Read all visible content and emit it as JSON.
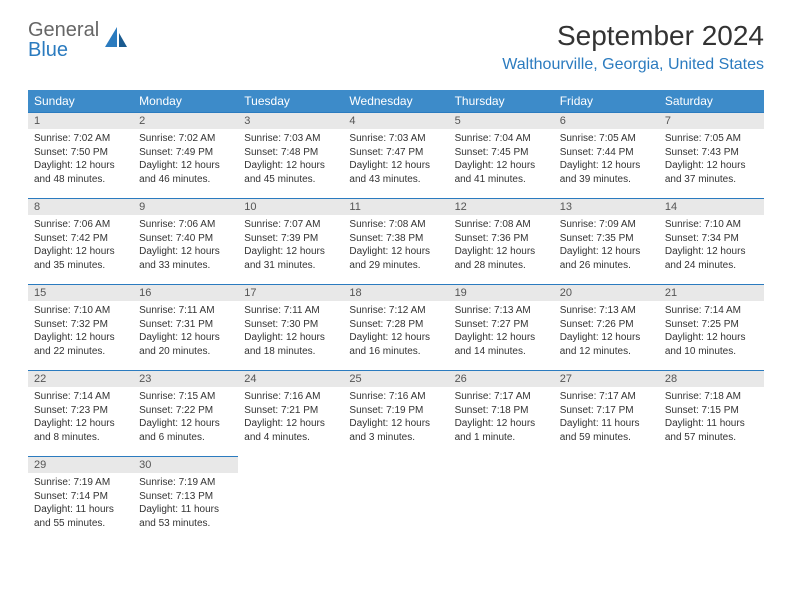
{
  "logo": {
    "text_main": "General",
    "text_accent": "Blue"
  },
  "title": {
    "month": "September 2024",
    "location": "Walthourville, Georgia, United States"
  },
  "colors": {
    "header_bg": "#3d8bc9",
    "accent": "#2b7bbf",
    "daynum_bg": "#e8e8e8",
    "text": "#333333"
  },
  "weekdays": [
    "Sunday",
    "Monday",
    "Tuesday",
    "Wednesday",
    "Thursday",
    "Friday",
    "Saturday"
  ],
  "days": [
    {
      "n": 1,
      "sunrise": "7:02 AM",
      "sunset": "7:50 PM",
      "daylight": "12 hours and 48 minutes."
    },
    {
      "n": 2,
      "sunrise": "7:02 AM",
      "sunset": "7:49 PM",
      "daylight": "12 hours and 46 minutes."
    },
    {
      "n": 3,
      "sunrise": "7:03 AM",
      "sunset": "7:48 PM",
      "daylight": "12 hours and 45 minutes."
    },
    {
      "n": 4,
      "sunrise": "7:03 AM",
      "sunset": "7:47 PM",
      "daylight": "12 hours and 43 minutes."
    },
    {
      "n": 5,
      "sunrise": "7:04 AM",
      "sunset": "7:45 PM",
      "daylight": "12 hours and 41 minutes."
    },
    {
      "n": 6,
      "sunrise": "7:05 AM",
      "sunset": "7:44 PM",
      "daylight": "12 hours and 39 minutes."
    },
    {
      "n": 7,
      "sunrise": "7:05 AM",
      "sunset": "7:43 PM",
      "daylight": "12 hours and 37 minutes."
    },
    {
      "n": 8,
      "sunrise": "7:06 AM",
      "sunset": "7:42 PM",
      "daylight": "12 hours and 35 minutes."
    },
    {
      "n": 9,
      "sunrise": "7:06 AM",
      "sunset": "7:40 PM",
      "daylight": "12 hours and 33 minutes."
    },
    {
      "n": 10,
      "sunrise": "7:07 AM",
      "sunset": "7:39 PM",
      "daylight": "12 hours and 31 minutes."
    },
    {
      "n": 11,
      "sunrise": "7:08 AM",
      "sunset": "7:38 PM",
      "daylight": "12 hours and 29 minutes."
    },
    {
      "n": 12,
      "sunrise": "7:08 AM",
      "sunset": "7:36 PM",
      "daylight": "12 hours and 28 minutes."
    },
    {
      "n": 13,
      "sunrise": "7:09 AM",
      "sunset": "7:35 PM",
      "daylight": "12 hours and 26 minutes."
    },
    {
      "n": 14,
      "sunrise": "7:10 AM",
      "sunset": "7:34 PM",
      "daylight": "12 hours and 24 minutes."
    },
    {
      "n": 15,
      "sunrise": "7:10 AM",
      "sunset": "7:32 PM",
      "daylight": "12 hours and 22 minutes."
    },
    {
      "n": 16,
      "sunrise": "7:11 AM",
      "sunset": "7:31 PM",
      "daylight": "12 hours and 20 minutes."
    },
    {
      "n": 17,
      "sunrise": "7:11 AM",
      "sunset": "7:30 PM",
      "daylight": "12 hours and 18 minutes."
    },
    {
      "n": 18,
      "sunrise": "7:12 AM",
      "sunset": "7:28 PM",
      "daylight": "12 hours and 16 minutes."
    },
    {
      "n": 19,
      "sunrise": "7:13 AM",
      "sunset": "7:27 PM",
      "daylight": "12 hours and 14 minutes."
    },
    {
      "n": 20,
      "sunrise": "7:13 AM",
      "sunset": "7:26 PM",
      "daylight": "12 hours and 12 minutes."
    },
    {
      "n": 21,
      "sunrise": "7:14 AM",
      "sunset": "7:25 PM",
      "daylight": "12 hours and 10 minutes."
    },
    {
      "n": 22,
      "sunrise": "7:14 AM",
      "sunset": "7:23 PM",
      "daylight": "12 hours and 8 minutes."
    },
    {
      "n": 23,
      "sunrise": "7:15 AM",
      "sunset": "7:22 PM",
      "daylight": "12 hours and 6 minutes."
    },
    {
      "n": 24,
      "sunrise": "7:16 AM",
      "sunset": "7:21 PM",
      "daylight": "12 hours and 4 minutes."
    },
    {
      "n": 25,
      "sunrise": "7:16 AM",
      "sunset": "7:19 PM",
      "daylight": "12 hours and 3 minutes."
    },
    {
      "n": 26,
      "sunrise": "7:17 AM",
      "sunset": "7:18 PM",
      "daylight": "12 hours and 1 minute."
    },
    {
      "n": 27,
      "sunrise": "7:17 AM",
      "sunset": "7:17 PM",
      "daylight": "11 hours and 59 minutes."
    },
    {
      "n": 28,
      "sunrise": "7:18 AM",
      "sunset": "7:15 PM",
      "daylight": "11 hours and 57 minutes."
    },
    {
      "n": 29,
      "sunrise": "7:19 AM",
      "sunset": "7:14 PM",
      "daylight": "11 hours and 55 minutes."
    },
    {
      "n": 30,
      "sunrise": "7:19 AM",
      "sunset": "7:13 PM",
      "daylight": "11 hours and 53 minutes."
    }
  ],
  "labels": {
    "sunrise": "Sunrise:",
    "sunset": "Sunset:",
    "daylight": "Daylight:"
  }
}
